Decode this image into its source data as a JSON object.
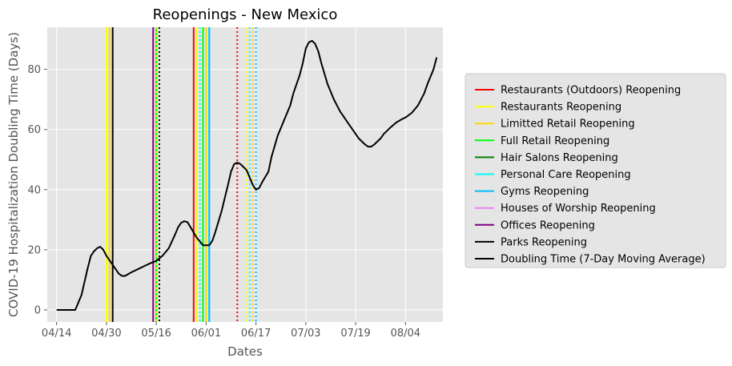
{
  "chart_data": {
    "type": "line",
    "title": "Reopenings - New Mexico",
    "xlabel": "Dates",
    "ylabel": "COVID-19 Hospitalization Doubling Time (Days)",
    "x_axis_type": "date",
    "year": 2020,
    "xlim": [
      "2020-04-11",
      "2020-08-16"
    ],
    "ylim": [
      -4,
      94
    ],
    "xticks": [
      {
        "date": "2020-04-14",
        "label": "04/14"
      },
      {
        "date": "2020-04-30",
        "label": "04/30"
      },
      {
        "date": "2020-05-16",
        "label": "05/16"
      },
      {
        "date": "2020-06-01",
        "label": "06/01"
      },
      {
        "date": "2020-06-17",
        "label": "06/17"
      },
      {
        "date": "2020-07-03",
        "label": "07/03"
      },
      {
        "date": "2020-07-19",
        "label": "07/19"
      },
      {
        "date": "2020-08-04",
        "label": "08/04"
      }
    ],
    "yticks": [
      0,
      20,
      40,
      60,
      80
    ],
    "grid": true,
    "background": "#e5e5e5",
    "legend_position": "right",
    "legend": [
      {
        "label": "Restaurants (Outdoors) Reopening",
        "color": "#ff0000"
      },
      {
        "label": "Restaurants Reopening",
        "color": "#ffff00"
      },
      {
        "label": "Limitted Retail Reopening",
        "color": "#ffd700"
      },
      {
        "label": "Full Retail Reopening",
        "color": "#00ff00"
      },
      {
        "label": "Hair Salons Reopening",
        "color": "#008000"
      },
      {
        "label": "Personal Care Reopening",
        "color": "#00ffff"
      },
      {
        "label": "Gyms Reopening",
        "color": "#00bfff"
      },
      {
        "label": "Houses of Worship Reopening",
        "color": "#ee82ee"
      },
      {
        "label": "Offices Reopening",
        "color": "#800080"
      },
      {
        "label": "Parks Reopening",
        "color": "#000000"
      },
      {
        "label": "Doubling Time (7-Day Moving Average)",
        "color": "#000000"
      }
    ],
    "vlines": [
      {
        "date": "2020-04-30",
        "color": "#ffff00",
        "style": "solid"
      },
      {
        "date": "2020-05-01",
        "color": "#ffd700",
        "style": "solid"
      },
      {
        "date": "2020-05-02",
        "color": "#000000",
        "style": "solid"
      },
      {
        "date": "2020-05-15",
        "color": "#800080",
        "style": "solid"
      },
      {
        "date": "2020-05-16",
        "color": "#00ff00",
        "style": "solid"
      },
      {
        "date": "2020-05-16",
        "color": "#ffd700",
        "style": "dotted"
      },
      {
        "date": "2020-05-17",
        "color": "#000000",
        "style": "dotted"
      },
      {
        "date": "2020-05-28",
        "color": "#ff0000",
        "style": "solid"
      },
      {
        "date": "2020-05-29",
        "color": "#ffff00",
        "style": "solid"
      },
      {
        "date": "2020-05-30",
        "color": "#00ffff",
        "style": "dotted"
      },
      {
        "date": "2020-05-31",
        "color": "#00ff00",
        "style": "solid"
      },
      {
        "date": "2020-06-01",
        "color": "#ffd700",
        "style": "solid"
      },
      {
        "date": "2020-06-02",
        "color": "#00ffff",
        "style": "solid"
      },
      {
        "date": "2020-06-02",
        "color": "#00bfff",
        "style": "solid"
      },
      {
        "date": "2020-06-11",
        "color": "#ff0000",
        "style": "dotted"
      },
      {
        "date": "2020-06-14",
        "color": "#ffff00",
        "style": "dotted"
      },
      {
        "date": "2020-06-15",
        "color": "#00ffff",
        "style": "dotted"
      },
      {
        "date": "2020-06-16",
        "color": "#ffd700",
        "style": "dotted"
      },
      {
        "date": "2020-06-17",
        "color": "#00bfff",
        "style": "dotted"
      }
    ],
    "series": [
      {
        "name": "Doubling Time (7-Day Moving Average)",
        "color": "#000000",
        "points": [
          [
            "2020-04-14",
            0
          ],
          [
            "2020-04-16",
            0
          ],
          [
            "2020-04-18",
            0
          ],
          [
            "2020-04-20",
            0
          ],
          [
            "2020-04-22",
            5
          ],
          [
            "2020-04-24",
            14
          ],
          [
            "2020-04-25",
            18
          ],
          [
            "2020-04-26",
            19.5
          ],
          [
            "2020-04-27",
            20.5
          ],
          [
            "2020-04-28",
            21
          ],
          [
            "2020-04-29",
            20
          ],
          [
            "2020-04-30",
            18
          ],
          [
            "2020-05-02",
            15
          ],
          [
            "2020-05-04",
            12
          ],
          [
            "2020-05-05",
            11.3
          ],
          [
            "2020-05-06",
            11.3
          ],
          [
            "2020-05-08",
            12.5
          ],
          [
            "2020-05-10",
            13.5
          ],
          [
            "2020-05-12",
            14.5
          ],
          [
            "2020-05-14",
            15.5
          ],
          [
            "2020-05-16",
            16.3
          ],
          [
            "2020-05-18",
            18
          ],
          [
            "2020-05-20",
            20.5
          ],
          [
            "2020-05-22",
            25
          ],
          [
            "2020-05-23",
            27.5
          ],
          [
            "2020-05-24",
            29
          ],
          [
            "2020-05-25",
            29.5
          ],
          [
            "2020-05-26",
            29.2
          ],
          [
            "2020-05-27",
            27.5
          ],
          [
            "2020-05-29",
            24
          ],
          [
            "2020-05-31",
            21.5
          ],
          [
            "2020-06-02",
            21.5
          ],
          [
            "2020-06-03",
            23
          ],
          [
            "2020-06-04",
            26
          ],
          [
            "2020-06-06",
            33
          ],
          [
            "2020-06-08",
            41.5
          ],
          [
            "2020-06-09",
            46
          ],
          [
            "2020-06-10",
            48.5
          ],
          [
            "2020-06-11",
            49
          ],
          [
            "2020-06-12",
            48.5
          ],
          [
            "2020-06-13",
            47.5
          ],
          [
            "2020-06-14",
            46.5
          ],
          [
            "2020-06-15",
            44
          ],
          [
            "2020-06-16",
            41.5
          ],
          [
            "2020-06-17",
            40
          ],
          [
            "2020-06-18",
            40.5
          ],
          [
            "2020-06-19",
            42.5
          ],
          [
            "2020-06-21",
            46
          ],
          [
            "2020-06-22",
            51
          ],
          [
            "2020-06-24",
            58
          ],
          [
            "2020-06-26",
            63
          ],
          [
            "2020-06-28",
            68
          ],
          [
            "2020-06-29",
            72
          ],
          [
            "2020-07-01",
            78
          ],
          [
            "2020-07-02",
            82
          ],
          [
            "2020-07-03",
            87
          ],
          [
            "2020-07-04",
            89
          ],
          [
            "2020-07-05",
            89.5
          ],
          [
            "2020-07-06",
            88.5
          ],
          [
            "2020-07-07",
            86
          ],
          [
            "2020-07-08",
            82
          ],
          [
            "2020-07-10",
            75
          ],
          [
            "2020-07-12",
            70
          ],
          [
            "2020-07-14",
            66
          ],
          [
            "2020-07-16",
            63
          ],
          [
            "2020-07-18",
            60
          ],
          [
            "2020-07-20",
            57
          ],
          [
            "2020-07-22",
            55
          ],
          [
            "2020-07-23",
            54.3
          ],
          [
            "2020-07-24",
            54.3
          ],
          [
            "2020-07-25",
            55
          ],
          [
            "2020-07-27",
            57
          ],
          [
            "2020-07-28",
            58.5
          ],
          [
            "2020-07-30",
            60.5
          ],
          [
            "2020-08-01",
            62.3
          ],
          [
            "2020-08-03",
            63.5
          ],
          [
            "2020-08-04",
            64
          ],
          [
            "2020-08-06",
            65.5
          ],
          [
            "2020-08-08",
            68
          ],
          [
            "2020-08-10",
            72
          ],
          [
            "2020-08-11",
            75
          ],
          [
            "2020-08-13",
            80
          ],
          [
            "2020-08-14",
            84
          ]
        ]
      }
    ]
  }
}
